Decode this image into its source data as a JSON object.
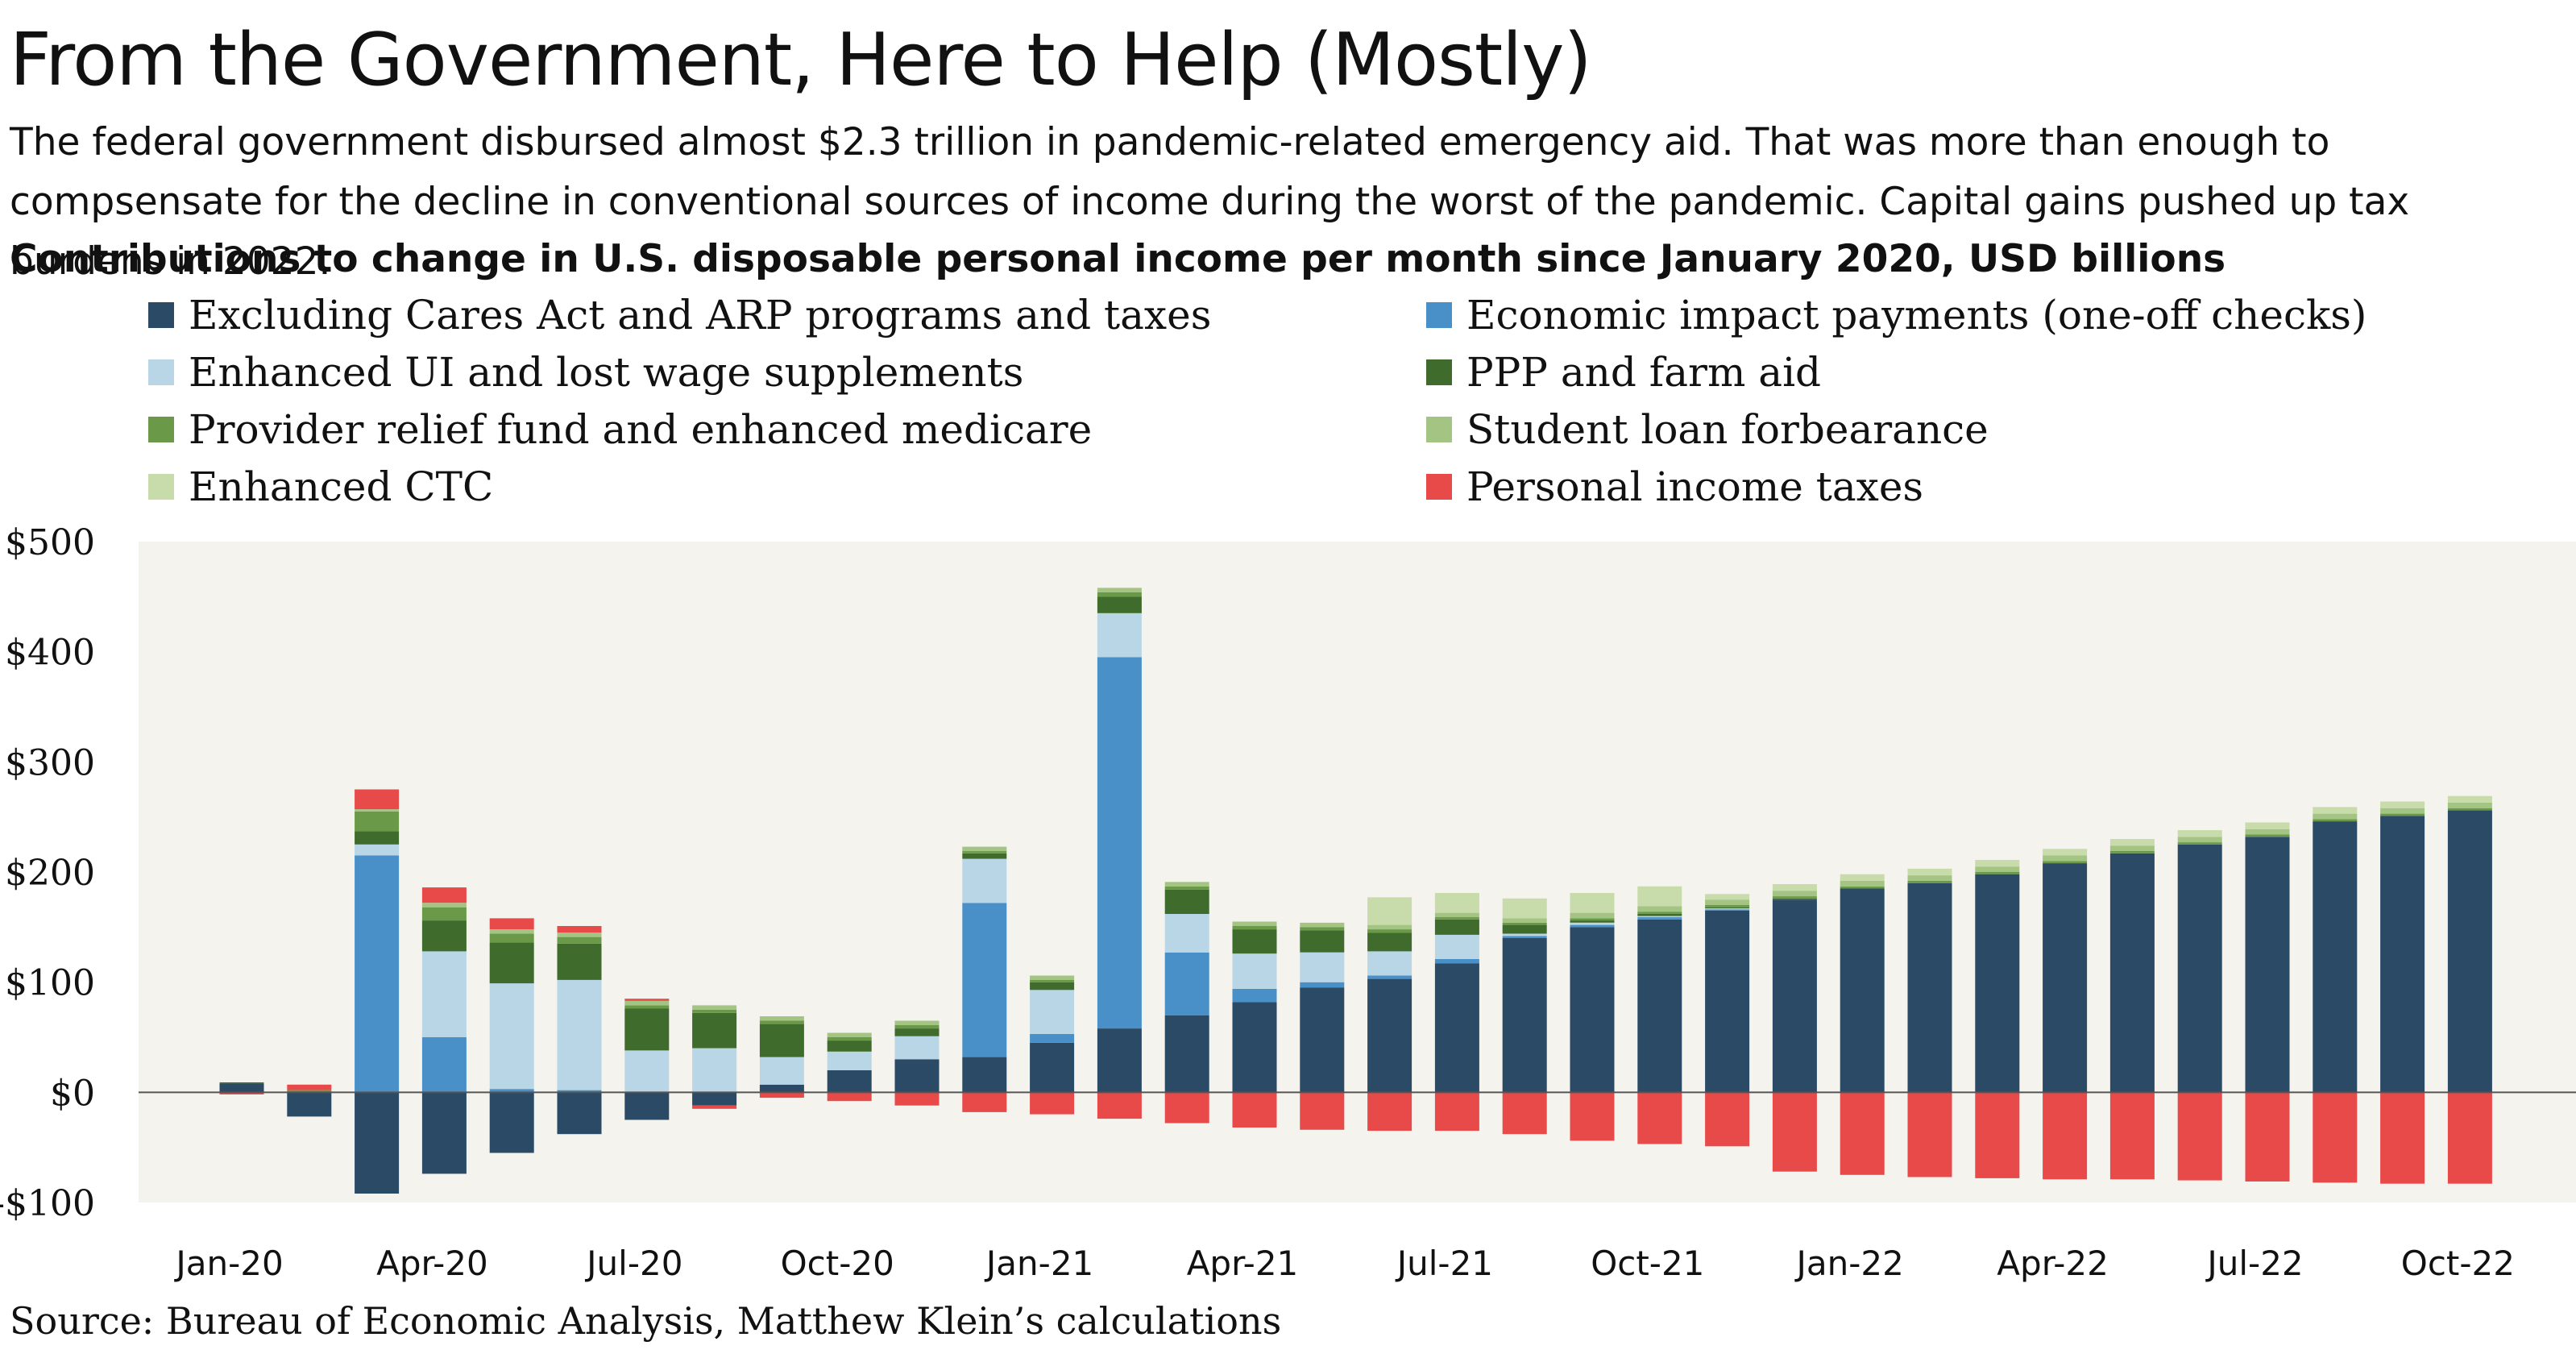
{
  "title": "From the Government, Here to Help (Mostly)",
  "subtitle": "The federal government disbursed almost $2.3 trillion in pandemic-related emergency aid. That was more than enough to compsensate for the decline in conventional sources of income during the worst of the pandemic. Capital gains pushed up tax burdens in 2022.",
  "chart_heading": "Contributions to change in U.S. disposable personal income per month since January 2020, USD billions",
  "source": "Source: Bureau of Economic Analysis, Matthew Klein’s calculations",
  "chart_data": {
    "type": "bar",
    "stacked": true,
    "background_color": "#f5f3ee",
    "ylim": [
      -100,
      500
    ],
    "ytick_values": [
      -100,
      0,
      100,
      200,
      300,
      400,
      500
    ],
    "ytick_labels": [
      "-$100",
      "$0",
      "$100",
      "$200",
      "$300",
      "$400",
      "$500"
    ],
    "xtick_labels": [
      {
        "index": 0,
        "label": "Jan-20"
      },
      {
        "index": 3,
        "label": "Apr-20"
      },
      {
        "index": 6,
        "label": "Jul-20"
      },
      {
        "index": 9,
        "label": "Oct-20"
      },
      {
        "index": 12,
        "label": "Jan-21"
      },
      {
        "index": 15,
        "label": "Apr-21"
      },
      {
        "index": 18,
        "label": "Jul-21"
      },
      {
        "index": 21,
        "label": "Oct-21"
      },
      {
        "index": 24,
        "label": "Jan-22"
      },
      {
        "index": 27,
        "label": "Apr-22"
      },
      {
        "index": 30,
        "label": "Jul-22"
      },
      {
        "index": 33,
        "label": "Oct-22"
      }
    ],
    "series": [
      {
        "name": "Excluding Cares Act and ARP programs and taxes",
        "color": "#2a4a66",
        "values": [
          8,
          -22,
          -92,
          -74,
          -55,
          -38,
          -25,
          -12,
          7,
          20,
          30,
          32,
          45,
          58,
          70,
          82,
          95,
          103,
          117,
          140,
          150,
          157,
          165,
          175,
          185,
          190,
          198,
          208,
          217,
          225,
          232,
          246,
          251,
          256
        ]
      },
      {
        "name": "Economic impact payments (one-off checks)",
        "color": "#4a90c8",
        "values": [
          0,
          0,
          215,
          50,
          3,
          2,
          0,
          0,
          0,
          0,
          0,
          140,
          8,
          337,
          57,
          12,
          5,
          3,
          4,
          2,
          2,
          2,
          1,
          0,
          0,
          0,
          0,
          0,
          0,
          0,
          0,
          0,
          0,
          0
        ]
      },
      {
        "name": "Enhanced UI and lost wage supplements",
        "color": "#b9d6e6",
        "values": [
          0,
          0,
          10,
          78,
          96,
          100,
          38,
          40,
          25,
          17,
          21,
          40,
          40,
          40,
          35,
          32,
          27,
          22,
          22,
          2,
          2,
          1,
          1,
          0,
          0,
          0,
          0,
          0,
          0,
          0,
          0,
          0,
          0,
          0
        ]
      },
      {
        "name": "PPP and farm aid",
        "color": "#3f6b2c",
        "values": [
          1,
          0,
          12,
          28,
          37,
          33,
          38,
          32,
          30,
          10,
          7,
          5,
          7,
          15,
          22,
          22,
          20,
          17,
          14,
          8,
          2,
          2,
          1,
          1,
          0,
          0,
          0,
          0,
          0,
          0,
          0,
          0,
          0,
          0
        ]
      },
      {
        "name": "Provider relief fund and enhanced medicare",
        "color": "#6a9a48",
        "values": [
          0,
          2,
          18,
          12,
          8,
          6,
          3,
          3,
          3,
          3,
          3,
          2,
          2,
          4,
          3,
          3,
          3,
          3,
          2,
          2,
          2,
          2,
          2,
          2,
          2,
          2,
          2,
          2,
          2,
          2,
          2,
          2,
          2,
          2
        ]
      },
      {
        "name": "Student loan forbearance",
        "color": "#a4c484",
        "values": [
          0,
          0,
          2,
          4,
          4,
          4,
          4,
          4,
          4,
          4,
          4,
          4,
          4,
          4,
          4,
          4,
          4,
          4,
          4,
          4,
          5,
          5,
          5,
          5,
          5,
          5,
          5,
          5,
          5,
          5,
          5,
          5,
          5,
          5
        ]
      },
      {
        "name": "Enhanced CTC",
        "color": "#c8dbaa",
        "values": [
          0,
          0,
          0,
          0,
          0,
          0,
          0,
          0,
          0,
          0,
          0,
          0,
          0,
          0,
          0,
          0,
          0,
          25,
          18,
          18,
          18,
          18,
          5,
          6,
          6,
          6,
          6,
          6,
          6,
          6,
          6,
          6,
          6,
          6
        ]
      },
      {
        "name": "Personal income taxes",
        "color": "#e84a4a",
        "values": [
          -2,
          5,
          18,
          14,
          10,
          6,
          2,
          -3,
          -5,
          -8,
          -12,
          -18,
          -20,
          -24,
          -28,
          -32,
          -34,
          -35,
          -35,
          -38,
          -44,
          -47,
          -49,
          -72,
          -75,
          -77,
          -78,
          -79,
          -79,
          -80,
          -81,
          -82,
          -83,
          -83
        ]
      }
    ]
  }
}
